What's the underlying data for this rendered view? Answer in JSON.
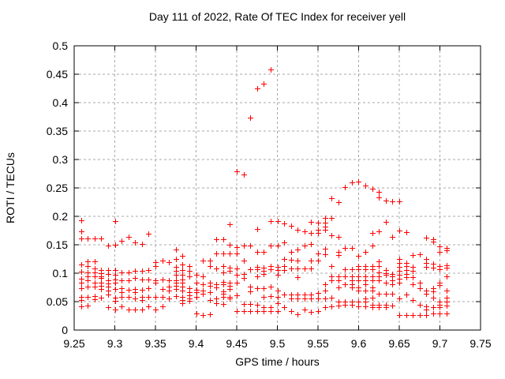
{
  "chart_data": {
    "type": "scatter",
    "title": "Day 111 of 2022, Rate Of TEC Index for receiver yell",
    "xlabel": "GPS time / hours",
    "ylabel": "ROTI / TECUs",
    "xlim": [
      9.25,
      9.75
    ],
    "ylim": [
      0,
      0.5
    ],
    "xticks": [
      "9.25",
      "9.3",
      "9.35",
      "9.4",
      "9.45",
      "9.5",
      "9.55",
      "9.6",
      "9.65",
      "9.7",
      "9.75"
    ],
    "yticks": [
      "0",
      "0.05",
      "0.1",
      "0.15",
      "0.2",
      "0.25",
      "0.3",
      "0.35",
      "0.4",
      "0.45",
      "0.5"
    ],
    "grid": true,
    "legend": "none",
    "marker": {
      "shape": "plus",
      "size": 7,
      "color": "#ff0000"
    },
    "colors": {
      "marker": "#ff0000",
      "grid": "#a8a8a8",
      "frame": "#000000",
      "background": "#ffffff",
      "text": "#000000"
    },
    "series": [
      {
        "name": "ROTI",
        "columns": [
          {
            "t": 9.2583,
            "r": [
              0.193,
              0.173,
              0.161,
              0.115,
              0.103,
              0.09,
              0.084,
              0.073,
              0.058,
              0.053,
              0.041
            ]
          },
          {
            "t": 9.2667,
            "r": [
              0.161,
              0.121,
              0.112,
              0.101,
              0.095,
              0.087,
              0.076,
              0.059,
              0.043
            ]
          },
          {
            "t": 9.275,
            "r": [
              0.161,
              0.121,
              0.108,
              0.101,
              0.094,
              0.084,
              0.076,
              0.06,
              0.054
            ]
          },
          {
            "t": 9.2833,
            "r": [
              0.161,
              0.105,
              0.1,
              0.095,
              0.091,
              0.084,
              0.078,
              0.072,
              0.057
            ]
          },
          {
            "t": 9.2917,
            "r": [
              0.148,
              0.105,
              0.099,
              0.087,
              0.082,
              0.076,
              0.07,
              0.062,
              0.04
            ]
          },
          {
            "t": 9.3,
            "r": [
              0.191,
              0.15,
              0.105,
              0.097,
              0.089,
              0.083,
              0.072,
              0.057,
              0.052,
              0.036
            ]
          },
          {
            "t": 9.3083,
            "r": [
              0.157,
              0.101,
              0.087,
              0.073,
              0.067,
              0.058,
              0.041
            ]
          },
          {
            "t": 9.3167,
            "r": [
              0.164,
              0.101,
              0.087,
              0.071,
              0.059,
              0.036
            ]
          },
          {
            "t": 9.325,
            "r": [
              0.154,
              0.104,
              0.091,
              0.072,
              0.066,
              0.056,
              0.036
            ]
          },
          {
            "t": 9.3333,
            "r": [
              0.151,
              0.104,
              0.089,
              0.071,
              0.059,
              0.053,
              0.036
            ]
          },
          {
            "t": 9.3417,
            "r": [
              0.17,
              0.105,
              0.089,
              0.073,
              0.059,
              0.041
            ]
          },
          {
            "t": 9.35,
            "r": [
              0.119,
              0.113,
              0.087,
              0.083,
              0.059,
              0.036
            ]
          },
          {
            "t": 9.3583,
            "r": [
              0.122,
              0.089,
              0.072,
              0.058,
              0.041
            ]
          },
          {
            "t": 9.3667,
            "r": [
              0.119,
              0.087,
              0.077,
              0.07,
              0.056
            ]
          },
          {
            "t": 9.375,
            "r": [
              0.142,
              0.125,
              0.111,
              0.104,
              0.097,
              0.087,
              0.083,
              0.078,
              0.072,
              0.06
            ]
          },
          {
            "t": 9.3833,
            "r": [
              0.131,
              0.115,
              0.106,
              0.097,
              0.089,
              0.084,
              0.076,
              0.07,
              0.059,
              0.053,
              0.047
            ]
          },
          {
            "t": 9.3917,
            "r": [
              0.113,
              0.104,
              0.094,
              0.073,
              0.067,
              0.061,
              0.056,
              0.051
            ]
          },
          {
            "t": 9.4,
            "r": [
              0.097,
              0.084,
              0.071,
              0.066,
              0.059,
              0.029
            ]
          },
          {
            "t": 9.4083,
            "r": [
              0.122,
              0.094,
              0.081,
              0.069,
              0.064,
              0.027
            ]
          },
          {
            "t": 9.4167,
            "r": [
              0.122,
              0.112,
              0.084,
              0.078,
              0.066,
              0.053,
              0.028
            ]
          },
          {
            "t": 9.425,
            "r": [
              0.16,
              0.135,
              0.108,
              0.081,
              0.075,
              0.055,
              0.047
            ]
          },
          {
            "t": 9.4333,
            "r": [
              0.16,
              0.135,
              0.112,
              0.102,
              0.085,
              0.08,
              0.068,
              0.064,
              0.058,
              0.046
            ]
          },
          {
            "t": 9.4417,
            "r": [
              0.186,
              0.15,
              0.135,
              0.11,
              0.104,
              0.084,
              0.078,
              0.072,
              0.059,
              0.056
            ]
          },
          {
            "t": 9.45,
            "r": [
              0.279,
              0.146,
              0.135,
              0.108,
              0.097,
              0.084,
              0.061,
              0.034
            ]
          },
          {
            "t": 9.4583,
            "r": [
              0.274,
              0.148,
              0.122,
              0.098,
              0.091,
              0.046,
              0.034
            ]
          },
          {
            "t": 9.4667,
            "r": [
              0.373,
              0.148,
              0.107,
              0.076,
              0.068,
              0.046,
              0.034
            ]
          },
          {
            "t": 9.475,
            "r": [
              0.425,
              0.178,
              0.138,
              0.111,
              0.107,
              0.094,
              0.073,
              0.044,
              0.033
            ]
          },
          {
            "t": 9.4833,
            "r": [
              0.434,
              0.138,
              0.11,
              0.104,
              0.098,
              0.073,
              0.059,
              0.04,
              0.033
            ]
          },
          {
            "t": 9.4917,
            "r": [
              0.459,
              0.192,
              0.148,
              0.112,
              0.107,
              0.077,
              0.06,
              0.04,
              0.033
            ]
          },
          {
            "t": 9.5,
            "r": [
              0.192,
              0.148,
              0.111,
              0.106,
              0.097,
              0.069,
              0.059,
              0.047,
              0.033
            ]
          },
          {
            "t": 9.5083,
            "r": [
              0.187,
              0.154,
              0.125,
              0.112,
              0.106,
              0.063,
              0.04
            ]
          },
          {
            "t": 9.5167,
            "r": [
              0.183,
              0.137,
              0.123,
              0.108,
              0.063,
              0.056,
              0.034
            ]
          },
          {
            "t": 9.525,
            "r": [
              0.177,
              0.142,
              0.122,
              0.108,
              0.093,
              0.063,
              0.056,
              0.028
            ]
          },
          {
            "t": 9.5333,
            "r": [
              0.174,
              0.149,
              0.108,
              0.063,
              0.056,
              0.036
            ]
          },
          {
            "t": 9.5417,
            "r": [
              0.19,
              0.171,
              0.152,
              0.122,
              0.108,
              0.063,
              0.056,
              0.032
            ]
          },
          {
            "t": 9.55,
            "r": [
              0.189,
              0.176,
              0.171,
              0.135,
              0.122,
              0.065,
              0.056,
              0.034
            ]
          },
          {
            "t": 9.5583,
            "r": [
              0.197,
              0.189,
              0.182,
              0.176,
              0.143,
              0.134,
              0.081,
              0.069,
              0.056,
              0.04
            ]
          },
          {
            "t": 9.5667,
            "r": [
              0.232,
              0.197,
              0.166,
              0.112,
              0.094,
              0.088,
              0.057,
              0.042
            ]
          },
          {
            "t": 9.575,
            "r": [
              0.225,
              0.164,
              0.138,
              0.132,
              0.094,
              0.088,
              0.075,
              0.05,
              0.043
            ]
          },
          {
            "t": 9.5833,
            "r": [
              0.252,
              0.144,
              0.107,
              0.094,
              0.081,
              0.05,
              0.044
            ]
          },
          {
            "t": 9.5917,
            "r": [
              0.26,
              0.144,
              0.107,
              0.094,
              0.088,
              0.081,
              0.075,
              0.05,
              0.044
            ]
          },
          {
            "t": 9.6,
            "r": [
              0.261,
              0.131,
              0.112,
              0.107,
              0.094,
              0.088,
              0.075,
              0.069,
              0.05,
              0.042
            ]
          },
          {
            "t": 9.6083,
            "r": [
              0.254,
              0.138,
              0.112,
              0.107,
              0.094,
              0.088,
              0.081,
              0.069,
              0.056,
              0.05,
              0.042
            ]
          },
          {
            "t": 9.6167,
            "r": [
              0.249,
              0.171,
              0.149,
              0.112,
              0.107,
              0.094,
              0.088,
              0.075,
              0.069,
              0.057,
              0.044,
              0.04
            ]
          },
          {
            "t": 9.625,
            "r": [
              0.243,
              0.233,
              0.174,
              0.121,
              0.112,
              0.102,
              0.094,
              0.088,
              0.064,
              0.044,
              0.04
            ]
          },
          {
            "t": 9.6333,
            "r": [
              0.228,
              0.19,
              0.106,
              0.1,
              0.097,
              0.084,
              0.064,
              0.044,
              0.04
            ]
          },
          {
            "t": 9.6417,
            "r": [
              0.227,
              0.164,
              0.099,
              0.094,
              0.088,
              0.081,
              0.064,
              0.043
            ]
          },
          {
            "t": 9.65,
            "r": [
              0.227,
              0.175,
              0.125,
              0.118,
              0.111,
              0.104,
              0.097,
              0.09,
              0.083,
              0.055,
              0.027
            ]
          },
          {
            "t": 9.6583,
            "r": [
              0.172,
              0.118,
              0.112,
              0.105,
              0.098,
              0.093,
              0.063,
              0.026
            ]
          },
          {
            "t": 9.6667,
            "r": [
              0.132,
              0.111,
              0.104,
              0.093,
              0.08,
              0.053,
              0.026
            ]
          },
          {
            "t": 9.675,
            "r": [
              0.133,
              0.084,
              0.074,
              0.044,
              0.026
            ]
          },
          {
            "t": 9.6833,
            "r": [
              0.163,
              0.125,
              0.118,
              0.111,
              0.07,
              0.064,
              0.042,
              0.036,
              0.026
            ]
          },
          {
            "t": 9.6917,
            "r": [
              0.16,
              0.155,
              0.116,
              0.11,
              0.074,
              0.068,
              0.057,
              0.04,
              0.029
            ]
          },
          {
            "t": 9.7,
            "r": [
              0.147,
              0.138,
              0.112,
              0.107,
              0.084,
              0.079,
              0.05,
              0.044,
              0.04,
              0.029
            ]
          },
          {
            "t": 9.7083,
            "r": [
              0.144,
              0.14,
              0.114,
              0.11,
              0.094,
              0.069,
              0.057,
              0.05,
              0.043,
              0.029
            ]
          }
        ]
      }
    ]
  }
}
